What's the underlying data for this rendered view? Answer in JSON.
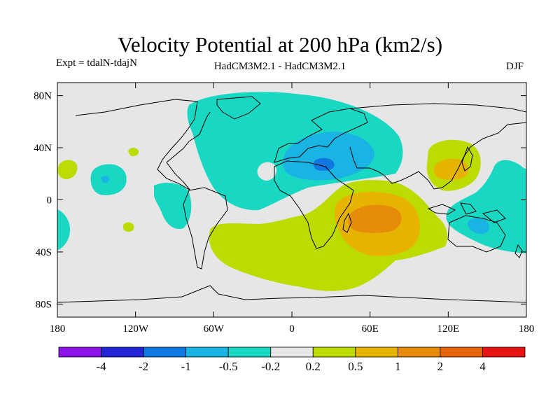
{
  "chart_data": {
    "type": "heatmap",
    "title": "Velocity Potential at 200 hPa (km2/s)",
    "left_label": "Expt = tdalN-tdajN",
    "center_label": "HadCM3M2.1 - HadCM3M2.1",
    "right_label": "DJF",
    "x_ticks": [
      {
        "value": -180,
        "label": "180"
      },
      {
        "value": -120,
        "label": "120W"
      },
      {
        "value": -60,
        "label": "60W"
      },
      {
        "value": 0,
        "label": "0"
      },
      {
        "value": 60,
        "label": "60E"
      },
      {
        "value": 120,
        "label": "120E"
      },
      {
        "value": 180,
        "label": "180"
      }
    ],
    "y_ticks": [
      {
        "value": 80,
        "label": "80N"
      },
      {
        "value": 40,
        "label": "40N"
      },
      {
        "value": 0,
        "label": "0"
      },
      {
        "value": -40,
        "label": "40S"
      },
      {
        "value": -80,
        "label": "80S"
      }
    ],
    "xlim": [
      -180,
      180
    ],
    "ylim": [
      -90,
      90
    ],
    "colorbar": {
      "colors": [
        "#8a14e6",
        "#2424d8",
        "#1078e0",
        "#19b4e4",
        "#18d8c4",
        "#e6e6e6",
        "#bcdc00",
        "#e6b400",
        "#e68c0a",
        "#e6640a",
        "#e61414"
      ],
      "labels": [
        "-4",
        "-2",
        "-1",
        "-0.5",
        "-0.2",
        "0.2",
        "0.5",
        "1",
        "2",
        "4"
      ]
    },
    "level_colors": {
      "neutral": "#e6e6e6",
      "neg_0_2": "#18d8c4",
      "neg_0_5": "#19b4e4",
      "neg_1": "#1078e0",
      "pos_0_2": "#bcdc00",
      "pos_0_5": "#e6b400",
      "pos_1": "#e68c0a"
    }
  }
}
